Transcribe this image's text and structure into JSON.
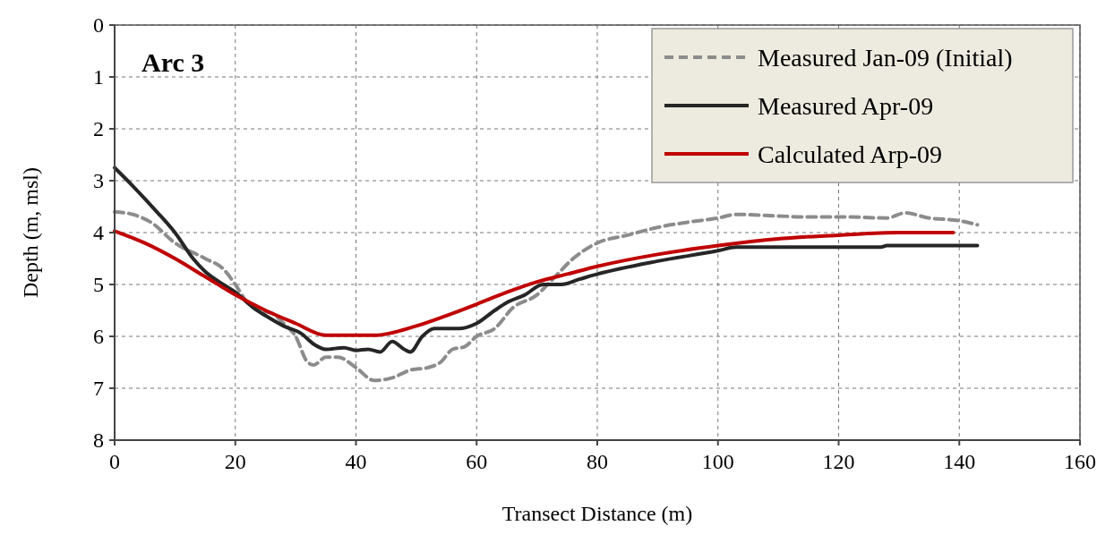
{
  "chart_data": {
    "type": "line",
    "title": "Arc 3",
    "xlabel": "Transect Distance (m)",
    "ylabel": "Depth (m, msl)",
    "xlim": [
      0,
      160
    ],
    "xticks": [
      0,
      20,
      40,
      60,
      80,
      100,
      120,
      140,
      160
    ],
    "ylim": [
      8,
      0
    ],
    "yticks": [
      0,
      1,
      2,
      3,
      4,
      5,
      6,
      7,
      8
    ],
    "grid": true,
    "legend": "top right",
    "marker": "none",
    "series": [
      {
        "name": "Measured Jan-09 (Initial)",
        "color": "#8c8c8c",
        "line_style": "dashed",
        "x": [
          0,
          3,
          6,
          10,
          15,
          18,
          20,
          22,
          24,
          26,
          28,
          30,
          32,
          33,
          35,
          37,
          40,
          43,
          46,
          49,
          52,
          54,
          56,
          58,
          60,
          63,
          66,
          70,
          73,
          76,
          80,
          85,
          90,
          95,
          100,
          103,
          110,
          115,
          122,
          128,
          131,
          135,
          140,
          143
        ],
        "values": [
          3.6,
          3.65,
          3.8,
          4.2,
          4.5,
          4.7,
          5.0,
          5.35,
          5.5,
          5.55,
          5.75,
          6.0,
          6.5,
          6.55,
          6.4,
          6.4,
          6.6,
          6.85,
          6.8,
          6.65,
          6.6,
          6.5,
          6.25,
          6.2,
          6.0,
          5.85,
          5.45,
          5.2,
          4.85,
          4.5,
          4.2,
          4.05,
          3.9,
          3.8,
          3.72,
          3.65,
          3.68,
          3.7,
          3.7,
          3.72,
          3.62,
          3.72,
          3.77,
          3.85
        ]
      },
      {
        "name": "Measured Apr-09",
        "color": "#262626",
        "line_style": "solid",
        "x": [
          0,
          3,
          7,
          10,
          13,
          15,
          18,
          20,
          23,
          25,
          28,
          31,
          33,
          35,
          38,
          40,
          42,
          44,
          46,
          48,
          49,
          51,
          53,
          57,
          60,
          63,
          65,
          68,
          71,
          74,
          77,
          80,
          90,
          100,
          103,
          110,
          127,
          128,
          143
        ],
        "values": [
          2.75,
          3.1,
          3.6,
          4.0,
          4.5,
          4.75,
          5.0,
          5.15,
          5.45,
          5.6,
          5.8,
          5.95,
          6.15,
          6.25,
          6.22,
          6.27,
          6.25,
          6.3,
          6.1,
          6.25,
          6.3,
          6.0,
          5.85,
          5.85,
          5.75,
          5.5,
          5.35,
          5.2,
          5.0,
          5.0,
          4.9,
          4.8,
          4.55,
          4.35,
          4.28,
          4.28,
          4.28,
          4.25,
          4.25
        ]
      },
      {
        "name": "Calculated Arp-09",
        "color": "#c00000",
        "line_style": "solid",
        "x": [
          0,
          5,
          10,
          15,
          20,
          25,
          30,
          35,
          43,
          50,
          55,
          60,
          65,
          70,
          75,
          80,
          90,
          100,
          110,
          120,
          130,
          139
        ],
        "values": [
          3.97,
          4.2,
          4.5,
          4.85,
          5.2,
          5.5,
          5.75,
          5.98,
          5.98,
          5.8,
          5.6,
          5.38,
          5.15,
          4.95,
          4.8,
          4.65,
          4.42,
          4.25,
          4.12,
          4.05,
          4.0,
          4.0
        ]
      }
    ]
  }
}
